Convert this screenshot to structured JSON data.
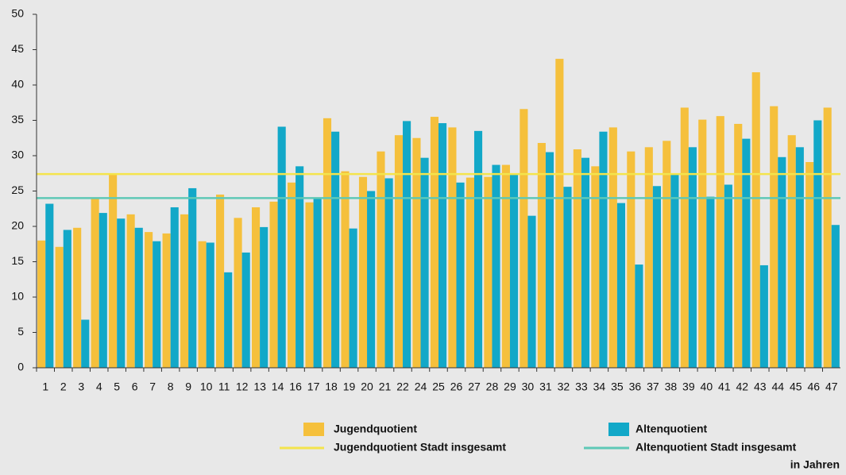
{
  "chart_data": {
    "type": "bar",
    "categories": [
      "1",
      "2",
      "3",
      "4",
      "5",
      "6",
      "7",
      "8",
      "9",
      "10",
      "11",
      "12",
      "13",
      "14",
      "16",
      "17",
      "18",
      "19",
      "20",
      "21",
      "22",
      "24",
      "25",
      "26",
      "27",
      "28",
      "29",
      "30",
      "31",
      "32",
      "33",
      "34",
      "35",
      "36",
      "37",
      "38",
      "39",
      "40",
      "41",
      "42",
      "43",
      "44",
      "45",
      "46",
      "47"
    ],
    "series": [
      {
        "name": "Jugendquotient",
        "color": "#f5c03c",
        "values": [
          18,
          17.1,
          19.8,
          24,
          27.4,
          21.7,
          19.2,
          19,
          21.7,
          17.9,
          24.5,
          21.2,
          22.7,
          23.5,
          26.2,
          23.4,
          35.3,
          27.8,
          27,
          30.6,
          32.9,
          32.5,
          35.5,
          34,
          26.9,
          27,
          28.7,
          36.6,
          31.8,
          43.7,
          30.9,
          28.5,
          34,
          30.6,
          31.2,
          32.1,
          36.8,
          35.1,
          35.6,
          34.5,
          41.8,
          37,
          32.9,
          29.1,
          36.8
        ]
      },
      {
        "name": "Altenquotient",
        "color": "#12a8c8",
        "values": [
          23.2,
          19.5,
          6.8,
          21.9,
          21.1,
          19.8,
          17.9,
          22.7,
          25.4,
          17.7,
          13.5,
          16.3,
          19.9,
          34.1,
          28.5,
          23.9,
          33.4,
          19.7,
          25,
          26.8,
          34.9,
          29.7,
          34.6,
          26.2,
          33.5,
          28.7,
          27.3,
          21.5,
          30.5,
          25.6,
          29.7,
          33.4,
          23.3,
          14.6,
          25.7,
          27.3,
          31.2,
          24.2,
          25.9,
          32.4,
          14.5,
          29.8,
          31.2,
          35,
          20.2
        ]
      }
    ],
    "reference_lines": [
      {
        "name": "Jugendquotient Stadt insgesamt",
        "color": "#f4e44c",
        "value": 27.4
      },
      {
        "name": "Altenquotient Stadt insgesamt",
        "color": "#5ec8b6",
        "value": 24.0
      }
    ],
    "note": "in Jahren",
    "ylim": [
      0,
      50
    ],
    "yticks": [
      0,
      5,
      10,
      15,
      20,
      25,
      30,
      35,
      40,
      45,
      50
    ]
  }
}
